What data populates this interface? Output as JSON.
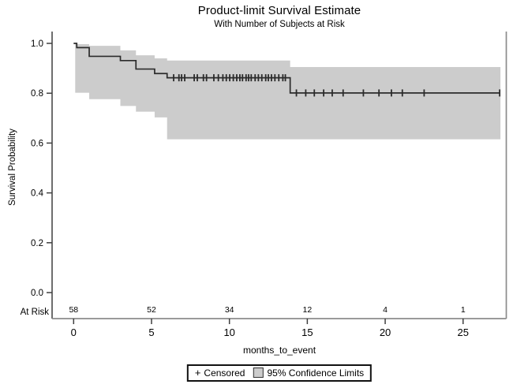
{
  "figure": {
    "title": "Product-limit Survival Estimate",
    "subtitle": "With Number of Subjects at Risk"
  },
  "axes": {
    "y_label": "Survival Probability",
    "x_label": "months_to_event",
    "y_ticks": [
      "1.0",
      "0.8",
      "0.6",
      "0.4",
      "0.2",
      "0.0"
    ],
    "x_ticks": [
      "0",
      "5",
      "10",
      "15",
      "20",
      "25"
    ]
  },
  "at_risk": {
    "label": "At Risk",
    "times": [
      0,
      5,
      10,
      15,
      20,
      25
    ],
    "counts": [
      "58",
      "52",
      "34",
      "12",
      "4",
      "1"
    ]
  },
  "legend": {
    "censored_symbol": "+",
    "censored_label": "Censored",
    "ci_label": "95% Confidence Limits"
  },
  "colors": {
    "band": "#cccccc",
    "curve": "#2b2b2b",
    "frame": "#8c8c8c",
    "axis": "#3f3f3f",
    "text": "#000000"
  },
  "chart_data": {
    "type": "line",
    "subtype": "kaplan-meier-step",
    "title": "Product-limit Survival Estimate",
    "subtitle": "With Number of Subjects at Risk",
    "xlabel": "months_to_event",
    "ylabel": "Survival Probability",
    "xlim": [
      -1.4,
      27.8
    ],
    "ylim": [
      0.0,
      1.0
    ],
    "x_tick_values": [
      0,
      5,
      10,
      15,
      20,
      25
    ],
    "y_tick_values": [
      1.0,
      0.8,
      0.6,
      0.4,
      0.2,
      0.0
    ],
    "grid": false,
    "legend_position": "bottom-center",
    "survival_steps": [
      {
        "t": 0.0,
        "s": 1.0
      },
      {
        "t": 0.2,
        "s": 0.983
      },
      {
        "t": 1.0,
        "s": 0.948
      },
      {
        "t": 3.0,
        "s": 0.931
      },
      {
        "t": 4.0,
        "s": 0.897
      },
      {
        "t": 5.2,
        "s": 0.879
      },
      {
        "t": 6.0,
        "s": 0.862
      },
      {
        "t": 13.9,
        "s": 0.801
      }
    ],
    "curve_end_t": 27.35,
    "ci_band_segments": [
      {
        "t0": 0.1,
        "t1": 1.0,
        "upper": 0.997,
        "lower": 0.861
      },
      {
        "t0": 1.0,
        "t1": 3.0,
        "upper": 0.99,
        "lower": 0.802
      },
      {
        "t0": 3.0,
        "t1": 4.0,
        "upper": 0.972,
        "lower": 0.776
      },
      {
        "t0": 4.0,
        "t1": 5.2,
        "upper": 0.952,
        "lower": 0.749
      },
      {
        "t0": 5.2,
        "t1": 6.0,
        "upper": 0.94,
        "lower": 0.726
      },
      {
        "t0": 6.0,
        "t1": 13.9,
        "upper": 0.931,
        "lower": 0.703
      },
      {
        "t0": 13.9,
        "t1": 27.4,
        "upper": 0.905,
        "lower": 0.615
      }
    ],
    "censor_marks": [
      {
        "t": 6.42,
        "s": 0.862
      },
      {
        "t": 6.76,
        "s": 0.862
      },
      {
        "t": 6.93,
        "s": 0.862
      },
      {
        "t": 7.13,
        "s": 0.862
      },
      {
        "t": 7.74,
        "s": 0.862
      },
      {
        "t": 7.94,
        "s": 0.862
      },
      {
        "t": 8.33,
        "s": 0.862
      },
      {
        "t": 8.53,
        "s": 0.862
      },
      {
        "t": 9.0,
        "s": 0.862
      },
      {
        "t": 9.29,
        "s": 0.862
      },
      {
        "t": 9.58,
        "s": 0.862
      },
      {
        "t": 9.8,
        "s": 0.862
      },
      {
        "t": 10.02,
        "s": 0.862
      },
      {
        "t": 10.25,
        "s": 0.862
      },
      {
        "t": 10.47,
        "s": 0.862
      },
      {
        "t": 10.67,
        "s": 0.862
      },
      {
        "t": 10.84,
        "s": 0.862
      },
      {
        "t": 11.07,
        "s": 0.862
      },
      {
        "t": 11.23,
        "s": 0.862
      },
      {
        "t": 11.4,
        "s": 0.862
      },
      {
        "t": 11.65,
        "s": 0.862
      },
      {
        "t": 11.86,
        "s": 0.862
      },
      {
        "t": 12.08,
        "s": 0.862
      },
      {
        "t": 12.33,
        "s": 0.862
      },
      {
        "t": 12.5,
        "s": 0.862
      },
      {
        "t": 12.7,
        "s": 0.862
      },
      {
        "t": 12.92,
        "s": 0.862
      },
      {
        "t": 13.17,
        "s": 0.862
      },
      {
        "t": 13.43,
        "s": 0.862
      },
      {
        "t": 13.59,
        "s": 0.862
      },
      {
        "t": 14.3,
        "s": 0.801
      },
      {
        "t": 14.9,
        "s": 0.801
      },
      {
        "t": 15.45,
        "s": 0.801
      },
      {
        "t": 16.05,
        "s": 0.801
      },
      {
        "t": 16.6,
        "s": 0.801
      },
      {
        "t": 17.3,
        "s": 0.801
      },
      {
        "t": 18.6,
        "s": 0.801
      },
      {
        "t": 19.6,
        "s": 0.801
      },
      {
        "t": 20.4,
        "s": 0.801
      },
      {
        "t": 21.1,
        "s": 0.801
      },
      {
        "t": 22.5,
        "s": 0.801
      },
      {
        "t": 27.35,
        "s": 0.801
      }
    ],
    "at_risk": {
      "times": [
        0,
        5,
        10,
        15,
        20,
        25
      ],
      "counts": [
        58,
        52,
        34,
        12,
        4,
        1
      ]
    }
  }
}
